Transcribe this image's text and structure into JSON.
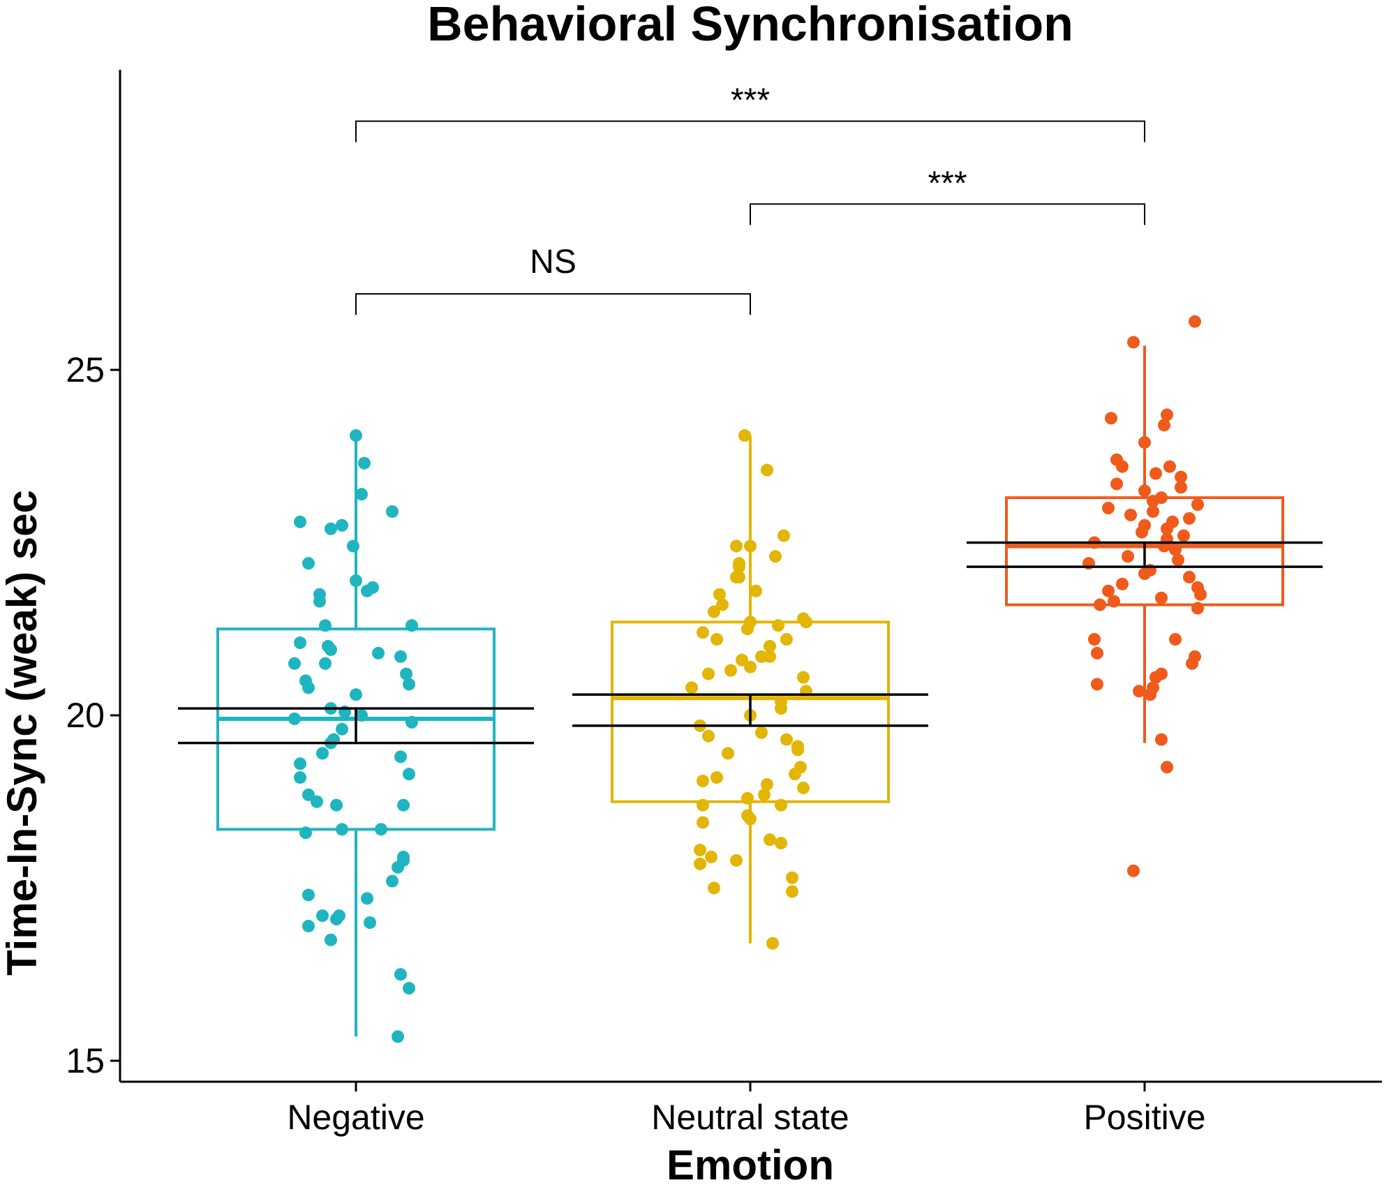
{
  "chart_data": {
    "type": "box",
    "title": "Behavioral Synchronisation",
    "xlabel": "Emotion",
    "ylabel": "Time-In-Sync (weak) sec",
    "ylim": [
      14.7,
      29.7
    ],
    "yticks": [
      15,
      20,
      25
    ],
    "categories": [
      "Negative",
      "Neutral state",
      "Positive"
    ],
    "groups": [
      {
        "name": "Negative",
        "color": "#1FB5C0",
        "box": {
          "whisker_low": 15.35,
          "q1": 18.35,
          "median": 19.95,
          "q3": 21.25,
          "whisker_high": 24.0
        },
        "mean_ci": {
          "low": 19.6,
          "mean": 19.85,
          "high": 20.1
        },
        "points": [
          24.05,
          23.65,
          22.95,
          22.8,
          22.75,
          22.7,
          22.45,
          23.2,
          22.2,
          21.95,
          21.85,
          21.8,
          21.75,
          21.65,
          21.3,
          21.3,
          21.05,
          21.0,
          20.95,
          20.9,
          20.85,
          20.75,
          20.75,
          20.6,
          20.5,
          20.45,
          20.4,
          20.3,
          20.1,
          20.05,
          20.0,
          19.95,
          19.9,
          19.8,
          19.65,
          19.6,
          19.45,
          19.4,
          19.3,
          19.15,
          19.1,
          18.85,
          18.75,
          18.7,
          18.7,
          18.35,
          18.35,
          18.3,
          17.95,
          17.9,
          17.8,
          17.6,
          17.4,
          17.35,
          17.1,
          17.1,
          17.05,
          17.0,
          16.95,
          16.75,
          16.25,
          16.05,
          15.35
        ],
        "jitter": [
          0.0,
          0.03,
          0.13,
          -0.2,
          -0.05,
          -0.09,
          -0.01,
          0.02,
          -0.17,
          0.0,
          0.06,
          0.04,
          -0.13,
          -0.13,
          0.2,
          -0.11,
          -0.2,
          -0.1,
          -0.09,
          0.08,
          0.16,
          -0.11,
          -0.22,
          0.18,
          -0.18,
          0.19,
          -0.17,
          0.0,
          -0.09,
          -0.04,
          0.02,
          -0.22,
          0.2,
          -0.05,
          -0.08,
          -0.09,
          -0.12,
          0.16,
          -0.2,
          0.19,
          -0.2,
          -0.17,
          -0.14,
          -0.07,
          0.17,
          -0.05,
          0.09,
          -0.18,
          0.17,
          0.17,
          0.15,
          0.13,
          -0.17,
          0.04,
          -0.12,
          -0.06,
          -0.07,
          0.05,
          -0.17,
          -0.09,
          0.16,
          0.19,
          0.15
        ]
      },
      {
        "name": "Neutral state",
        "color": "#E3B505",
        "box": {
          "whisker_low": 16.7,
          "q1": 18.75,
          "median": 20.25,
          "q3": 21.35,
          "whisker_high": 24.05
        },
        "mean_ci": {
          "low": 19.85,
          "mean": 20.05,
          "high": 20.3
        },
        "points": [
          24.05,
          23.55,
          22.6,
          22.45,
          22.45,
          22.3,
          22.2,
          22.15,
          22.0,
          22.0,
          21.8,
          21.75,
          21.6,
          21.5,
          21.4,
          21.35,
          21.35,
          21.3,
          21.25,
          21.2,
          21.1,
          21.1,
          21.0,
          20.85,
          20.85,
          20.8,
          20.7,
          20.65,
          20.6,
          20.55,
          20.4,
          20.35,
          20.2,
          20.1,
          20.0,
          19.85,
          19.75,
          19.7,
          19.65,
          19.55,
          19.5,
          19.45,
          19.25,
          19.15,
          19.1,
          19.05,
          19.0,
          18.95,
          18.85,
          18.8,
          18.7,
          18.7,
          18.55,
          18.5,
          18.45,
          18.2,
          18.15,
          18.05,
          17.95,
          17.9,
          17.85,
          17.65,
          17.5,
          17.45,
          16.7
        ],
        "jitter": [
          -0.02,
          0.06,
          0.12,
          -0.05,
          -0.0,
          0.09,
          -0.04,
          -0.04,
          -0.05,
          -0.04,
          0.02,
          -0.11,
          -0.1,
          -0.13,
          0.19,
          0.0,
          0.2,
          0.1,
          -0.01,
          -0.17,
          0.13,
          -0.12,
          0.07,
          0.07,
          0.04,
          -0.03,
          0.0,
          -0.07,
          -0.15,
          0.19,
          -0.21,
          0.2,
          0.11,
          0.11,
          0.0,
          -0.18,
          0.04,
          -0.15,
          0.13,
          0.17,
          0.17,
          -0.08,
          0.18,
          0.16,
          -0.12,
          -0.17,
          0.06,
          0.19,
          0.05,
          -0.01,
          -0.17,
          0.11,
          -0.01,
          0.0,
          -0.17,
          0.07,
          0.11,
          -0.18,
          -0.14,
          -0.05,
          -0.18,
          0.15,
          -0.13,
          0.15,
          0.08
        ]
      },
      {
        "name": "Positive",
        "color": "#F05A1A",
        "box": {
          "whisker_low": 19.6,
          "q1": 21.6,
          "median": 22.45,
          "q3": 23.15,
          "whisker_high": 25.35
        },
        "mean_ci": {
          "low": 22.15,
          "mean": 22.3,
          "high": 22.5
        },
        "points": [
          25.7,
          25.4,
          24.35,
          24.3,
          24.2,
          23.95,
          23.7,
          23.6,
          23.6,
          23.5,
          23.45,
          23.35,
          23.3,
          23.25,
          23.15,
          23.1,
          23.05,
          23.0,
          22.95,
          22.9,
          22.85,
          22.8,
          22.75,
          22.7,
          22.65,
          22.6,
          22.55,
          22.5,
          22.45,
          22.4,
          22.3,
          22.25,
          22.2,
          22.1,
          22.05,
          22.0,
          21.9,
          21.85,
          21.8,
          21.75,
          21.7,
          21.65,
          21.6,
          21.55,
          21.1,
          21.1,
          20.9,
          20.85,
          20.75,
          20.6,
          20.55,
          20.45,
          20.4,
          20.35,
          20.3,
          19.65,
          19.25,
          17.75
        ],
        "jitter": [
          0.18,
          -0.04,
          0.08,
          -0.12,
          0.07,
          0.0,
          -0.1,
          0.09,
          -0.08,
          0.04,
          0.13,
          -0.1,
          0.13,
          0.0,
          0.06,
          0.03,
          0.19,
          -0.13,
          0.03,
          -0.05,
          0.16,
          0.1,
          0.0,
          0.08,
          -0.01,
          0.14,
          0.08,
          -0.18,
          0.07,
          0.11,
          -0.06,
          0.12,
          -0.2,
          0.02,
          0.0,
          0.16,
          -0.08,
          0.19,
          -0.13,
          0.2,
          0.06,
          -0.11,
          -0.16,
          0.19,
          0.11,
          -0.18,
          -0.17,
          0.18,
          0.17,
          0.06,
          0.04,
          -0.17,
          0.03,
          -0.02,
          0.02,
          0.06,
          0.08,
          -0.04
        ]
      }
    ],
    "comparisons": [
      {
        "from": 0,
        "to": 2,
        "label": "***",
        "y": 28.6
      },
      {
        "from": 1,
        "to": 2,
        "label": "***",
        "y": 27.4
      },
      {
        "from": 0,
        "to": 1,
        "label": "NS",
        "y": 26.1
      }
    ]
  }
}
